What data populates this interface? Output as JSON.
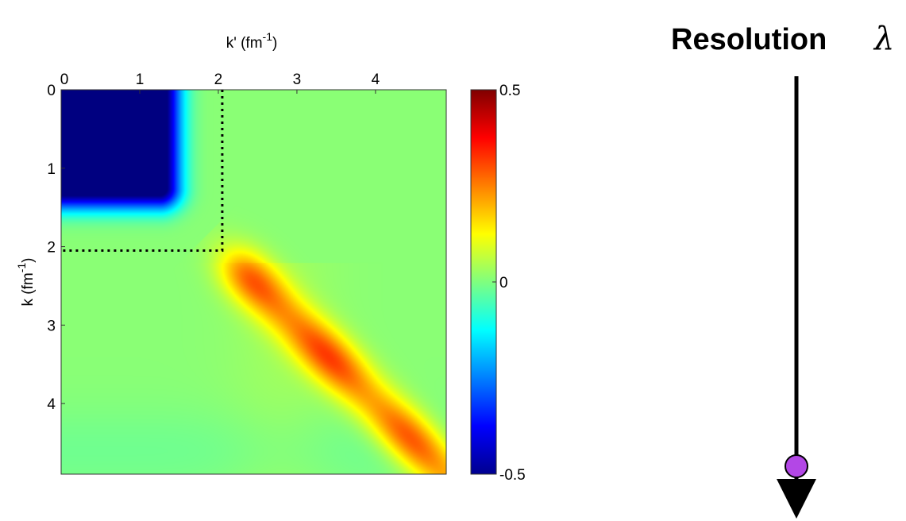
{
  "chart_data": {
    "type": "heatmap",
    "x": {
      "label_base": "k' (fm",
      "label_exp": "-1",
      "label_close": ")",
      "ticks": [
        "0",
        "1",
        "2",
        "3",
        "4"
      ],
      "range": [
        0,
        4.9
      ]
    },
    "y": {
      "label_base": "k (fm",
      "label_exp": "-1",
      "label_close": ")",
      "ticks": [
        "0",
        "1",
        "2",
        "3",
        "4"
      ],
      "range": [
        0,
        4.9
      ],
      "inverted": true
    },
    "colorbar": {
      "ticks": [
        "0.5",
        "0",
        "-0.5"
      ],
      "range": [
        -0.5,
        0.5
      ],
      "colormap": "jet"
    },
    "cutoff_box": {
      "k_max": 2.05,
      "kp_max": 2.05,
      "style": "dotted"
    },
    "features": {
      "low_momentum_block": {
        "value": -0.5,
        "extent_k": 1.6,
        "extent_kp": 1.6
      },
      "diagonal_ridge": {
        "value": 0.3,
        "from": 2.05,
        "to": 4.9
      }
    }
  },
  "resolution": {
    "title": "Resolution",
    "symbol": "λ",
    "marker_color": "#b347e6"
  }
}
